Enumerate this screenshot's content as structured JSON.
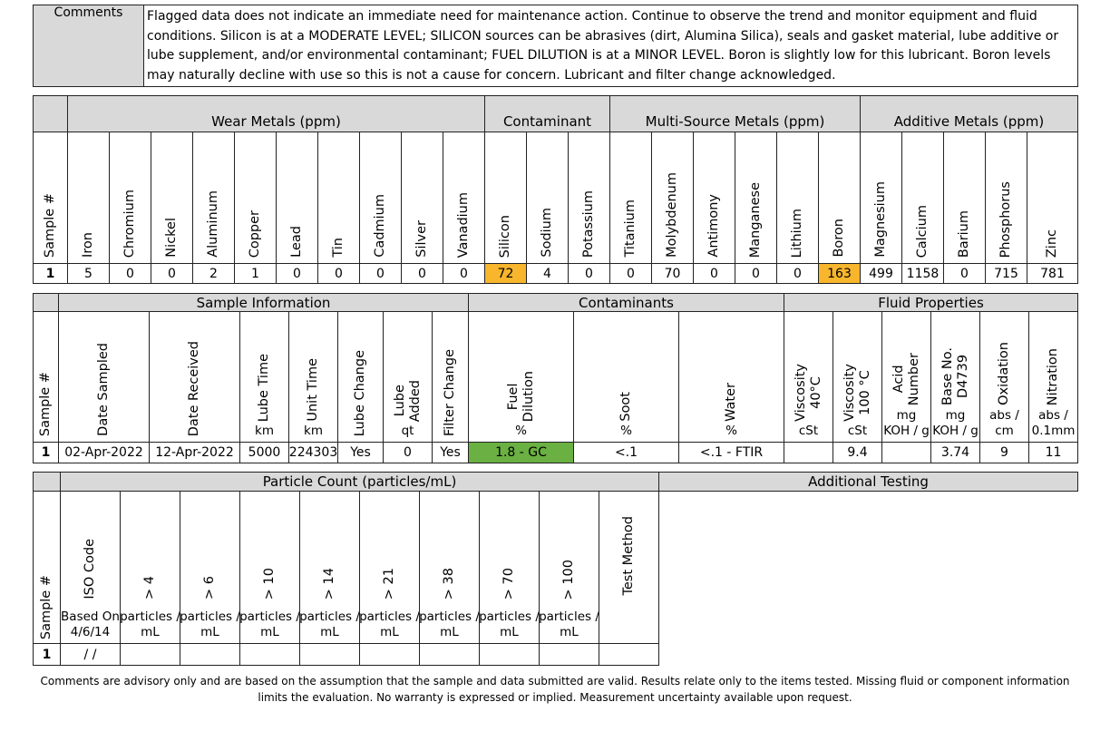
{
  "comments": {
    "label": "Comments",
    "text": "Flagged data does not indicate an immediate need for maintenance action. Continue to observe the trend and monitor equipment and fluid conditions. Silicon is at a MODERATE LEVEL; SILICON sources can be abrasives (dirt, Alumina Silica), seals and gasket material, lube additive or lube supplement, and/or environmental contaminant; FUEL DILUTION is at a MINOR LEVEL. Boron is slightly low for this lubricant. Boron levels may naturally decline with use so this is not a cause for concern. Lubricant and filter change acknowledged."
  },
  "metals": {
    "sample_header": "Sample #",
    "groups": [
      {
        "name": "Wear Metals (ppm)",
        "columns": [
          "Iron",
          "Chromium",
          "Nickel",
          "Aluminum",
          "Copper",
          "Lead",
          "Tin",
          "Cadmium",
          "Silver",
          "Vanadium"
        ]
      },
      {
        "name": "Contaminant",
        "columns": [
          "Silicon",
          "Sodium",
          "Potassium"
        ]
      },
      {
        "name": "Multi-Source Metals (ppm)",
        "columns": [
          "Titanium",
          "Molybdenum",
          "Antimony",
          "Manganese",
          "Lithium",
          "Boron"
        ]
      },
      {
        "name": "Additive Metals (ppm)",
        "columns": [
          "Magnesium",
          "Calcium",
          "Barium",
          "Phosphorus",
          "Zinc"
        ]
      }
    ],
    "row": {
      "sample": 1,
      "values": [
        5,
        0,
        0,
        2,
        1,
        0,
        0,
        0,
        0,
        0,
        72,
        4,
        0,
        0,
        70,
        0,
        0,
        0,
        163,
        499,
        1158,
        0,
        715,
        781
      ],
      "colors": [
        null,
        null,
        null,
        null,
        null,
        null,
        null,
        null,
        null,
        null,
        "#f8b62c",
        null,
        null,
        null,
        null,
        null,
        null,
        null,
        "#f8b62c",
        null,
        null,
        null,
        null,
        null
      ]
    }
  },
  "fluid": {
    "sample_header": "Sample #",
    "groups": [
      {
        "name": "Sample Information",
        "columns": [
          {
            "label": [
              "Date Sampled"
            ]
          },
          {
            "label": [
              "Date  Received"
            ]
          },
          {
            "label": [
              "Lube Time"
            ],
            "unit": [
              "km"
            ]
          },
          {
            "label": [
              "Unit Time"
            ],
            "unit": [
              "km"
            ]
          },
          {
            "label": [
              "Lube Change"
            ]
          },
          {
            "label": [
              "Lube",
              "Added"
            ],
            "unit": [
              "qt"
            ]
          },
          {
            "label": [
              "Filter Change"
            ]
          }
        ]
      },
      {
        "name": "Contaminants",
        "columns": [
          {
            "label": [
              "Fuel",
              "Dilution"
            ],
            "unit": [
              "%"
            ]
          },
          {
            "label": [
              "Soot"
            ],
            "unit": [
              "%"
            ]
          },
          {
            "label": [
              "Water"
            ],
            "unit": [
              "%"
            ]
          }
        ]
      },
      {
        "name": "Fluid Properties",
        "columns": [
          {
            "label": [
              "Viscosity",
              "40°C"
            ],
            "unit": [
              "cSt"
            ]
          },
          {
            "label": [
              "Viscosity",
              "100 °C"
            ],
            "unit": [
              "cSt"
            ]
          },
          {
            "label": [
              "Acid",
              "Number"
            ],
            "unit": [
              "mg",
              "KOH / g"
            ]
          },
          {
            "label": [
              "Base No.",
              "D4739"
            ],
            "unit": [
              "mg",
              "KOH / g"
            ]
          },
          {
            "label": [
              "Oxidation"
            ],
            "unit": [
              "abs /",
              "cm"
            ]
          },
          {
            "label": [
              "Nitration"
            ],
            "unit": [
              "abs /",
              "0.1mm"
            ]
          }
        ]
      }
    ],
    "row": {
      "sample": 1,
      "values": [
        "02-Apr-2022",
        "12-Apr-2022",
        5000,
        224303,
        "Yes",
        0,
        "Yes",
        "1.8 - GC",
        "<.1",
        "<.1 - FTIR",
        null,
        9.4,
        null,
        3.74,
        9,
        11
      ],
      "colors": [
        null,
        null,
        null,
        null,
        null,
        null,
        null,
        "#6ab042",
        null,
        null,
        null,
        null,
        null,
        null,
        null,
        null
      ]
    }
  },
  "particles": {
    "sample_header": "Sample #",
    "group": "Particle Count (particles/mL)",
    "additional": "Additional Testing",
    "columns": [
      {
        "label": [
          "ISO Code"
        ],
        "unit": [
          "Based On",
          "4/6/14"
        ]
      },
      {
        "label": [
          "> 4"
        ],
        "unit": [
          "particles /",
          "mL"
        ]
      },
      {
        "label": [
          "> 6"
        ],
        "unit": [
          "particles /",
          "mL"
        ]
      },
      {
        "label": [
          "> 10"
        ],
        "unit": [
          "particles /",
          "mL"
        ]
      },
      {
        "label": [
          "> 14"
        ],
        "unit": [
          "particles /",
          "mL"
        ]
      },
      {
        "label": [
          "> 21"
        ],
        "unit": [
          "particles /",
          "mL"
        ]
      },
      {
        "label": [
          "> 38"
        ],
        "unit": [
          "particles /",
          "mL"
        ]
      },
      {
        "label": [
          "> 70"
        ],
        "unit": [
          "particles /",
          "mL"
        ]
      },
      {
        "label": [
          "> 100"
        ],
        "unit": [
          "particles /",
          "mL"
        ]
      },
      {
        "label": [
          "Test Method"
        ]
      }
    ],
    "row": {
      "sample": 1,
      "values": [
        "/ /",
        null,
        null,
        null,
        null,
        null,
        null,
        null,
        null,
        null
      ]
    }
  },
  "footer": "Comments are advisory only and are based on the assumption that the sample and data submitted are valid. Results relate only to the items tested. Missing fluid or component information limits the evaluation. No warranty is expressed or implied. Measurement uncertainty available upon request."
}
